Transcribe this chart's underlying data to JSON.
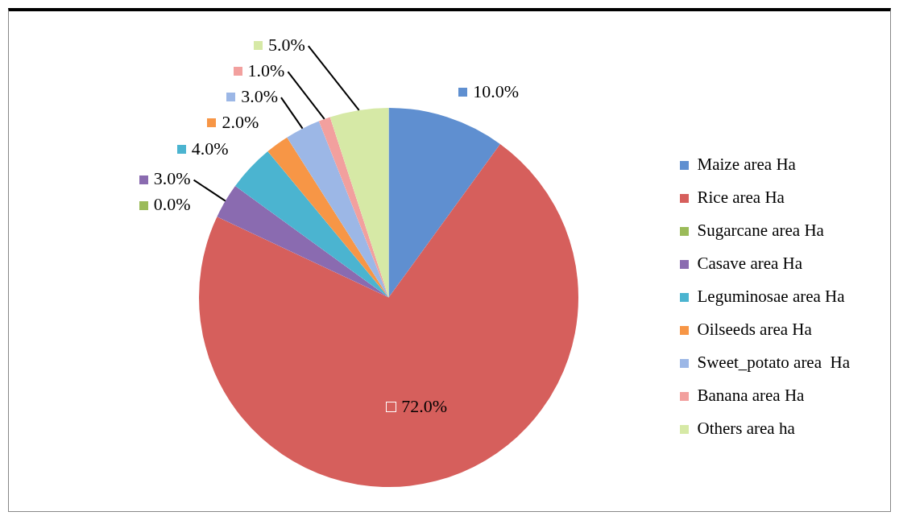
{
  "chart_data": {
    "type": "pie",
    "categories": [
      "Maize area Ha",
      "Rice area Ha",
      "Sugarcane area Ha",
      "Casave area Ha",
      "Leguminosae area Ha",
      "Oilseeds area Ha",
      "Sweet_potato area  Ha",
      "Banana area Ha",
      "Others area ha"
    ],
    "values": [
      10,
      72,
      0,
      3,
      4,
      2,
      3,
      1,
      5
    ],
    "value_labels": [
      "10.0%",
      "72.0%",
      "0.0%",
      "3.0%",
      "4.0%",
      "2.0%",
      "3.0%",
      "1.0%",
      "5.0%"
    ],
    "colors": [
      "#5f8fd0",
      "#d65f5c",
      "#9bbb59",
      "#8a6bb0",
      "#4bb4d0",
      "#f79646",
      "#9cb7e6",
      "#f2a09e",
      "#d6e9a6"
    ],
    "legend": "right"
  }
}
